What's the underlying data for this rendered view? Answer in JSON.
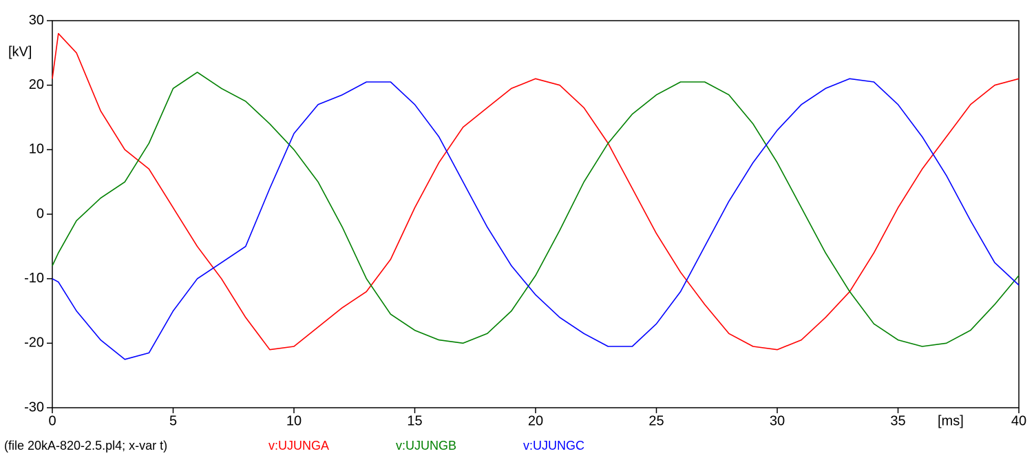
{
  "chart_data": {
    "type": "line",
    "x_label": "[ms]",
    "y_label": "[kV]",
    "footer": "(file 20kA-820-2.5.pl4; x-var t)",
    "x": [
      0,
      0.25,
      1,
      2,
      3,
      4,
      5,
      6,
      7,
      8,
      9,
      10,
      11,
      12,
      13,
      14,
      15,
      16,
      17,
      18,
      19,
      20,
      21,
      22,
      23,
      24,
      25,
      26,
      27,
      28,
      29,
      30,
      31,
      32,
      33,
      34,
      35,
      36,
      37,
      38,
      39,
      40
    ],
    "series": [
      {
        "name": "v:UJUNGA",
        "color": "#ff0000",
        "values": [
          21,
          28,
          25,
          16,
          10,
          7,
          1,
          -5,
          -10,
          -16,
          -21,
          -20.5,
          -17.5,
          -14.5,
          -12,
          -7,
          1,
          8,
          13.5,
          16.5,
          19.5,
          21,
          20,
          16.5,
          11,
          4,
          -3,
          -9,
          -14,
          -18.5,
          -20.5,
          -21,
          -19.5,
          -16,
          -12,
          -6,
          1,
          7,
          12,
          17,
          20,
          21
        ]
      },
      {
        "name": "v:UJUNGB",
        "color": "#008000",
        "values": [
          -8,
          -6,
          -1,
          2.5,
          5,
          11,
          19.5,
          22,
          19.5,
          17.5,
          14,
          10,
          5,
          -2,
          -10,
          -15.5,
          -18,
          -19.5,
          -20,
          -18.5,
          -15,
          -9.5,
          -2.5,
          5,
          11,
          15.5,
          18.5,
          20.5,
          20.5,
          18.5,
          14,
          8,
          1,
          -6,
          -12,
          -17,
          -19.5,
          -20.5,
          -20,
          -18,
          -14,
          -9.5
        ]
      },
      {
        "name": "v:UJUNGC",
        "color": "#0000ff",
        "values": [
          -10,
          -10.5,
          -15,
          -19.5,
          -22.5,
          -21.5,
          -15,
          -10,
          -7.5,
          -5,
          4,
          12.5,
          17,
          18.5,
          20.5,
          20.5,
          17,
          12,
          5,
          -2,
          -8,
          -12.5,
          -16,
          -18.5,
          -20.5,
          -20.5,
          -17,
          -12,
          -5,
          2,
          8,
          13,
          17,
          19.5,
          21,
          20.5,
          17,
          12,
          6,
          -1,
          -7.5,
          -11
        ]
      }
    ],
    "xlim": [
      0,
      40
    ],
    "xticks": [
      0,
      5,
      10,
      15,
      20,
      25,
      30,
      35,
      40
    ],
    "ylim": [
      -30,
      30
    ],
    "yticks": [
      30,
      20,
      10,
      0,
      -10,
      -20,
      -30
    ],
    "grid": false
  }
}
